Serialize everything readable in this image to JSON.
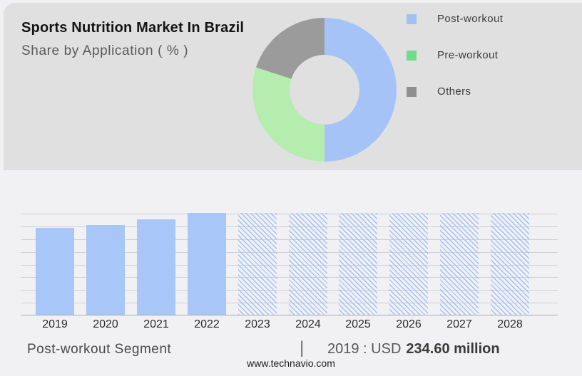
{
  "header": {
    "title": "Sports Nutrition Market In Brazil",
    "subtitle": "Share by Application ( % )"
  },
  "colors": {
    "panel_bg": "#e0e0e1",
    "page_bg": "#f1f1f3",
    "bar_blue": "#a8c6f8",
    "hatch_blue": "#a0c0f5",
    "gridline": "#cfcfd1"
  },
  "legend": {
    "items": [
      {
        "label": "Post-workout",
        "color": "#a2c1f3"
      },
      {
        "label": "Pre-workout",
        "color": "#6edd8a"
      },
      {
        "label": "Others",
        "color": "#8f8f8f"
      }
    ]
  },
  "chart_data": [
    {
      "type": "pie",
      "subtype": "donut",
      "title": "Share by Application ( % )",
      "labels": [
        "Post-workout",
        "Pre-workout",
        "Others"
      ],
      "values_pct": [
        50,
        30,
        20
      ],
      "colors": [
        "#a5c3f7",
        "#b5edae",
        "#9b9b9b"
      ],
      "start_angle_deg": 0,
      "direction": "clockwise",
      "inner_radius_ratio": 0.48,
      "legend_position": "right",
      "data_labels_visible": false
    },
    {
      "type": "bar",
      "categories": [
        "2019",
        "2020",
        "2021",
        "2022",
        "2023",
        "2024",
        "2025",
        "2026",
        "2027",
        "2028"
      ],
      "values_relative": [
        0.85,
        0.88,
        0.94,
        1.0,
        1.0,
        1.0,
        1.0,
        1.0,
        1.0,
        1.0
      ],
      "bar_styles": [
        "solid",
        "solid",
        "solid",
        "solid",
        "hatched",
        "hatched",
        "hatched",
        "hatched",
        "hatched",
        "hatched"
      ],
      "known_values": {
        "2019": "USD 234.60 million"
      },
      "estimated_values_usd_million": [
        234.6,
        242.3,
        257.7,
        275.0,
        null,
        null,
        null,
        null,
        null,
        null
      ],
      "note": "2023-2028 forecast bars drawn full height with diagonal hatch, no value labels",
      "xlabel": "",
      "ylabel": "",
      "grid": true,
      "y_axis_labels_visible": false
    }
  ],
  "footer": {
    "segment_label": "Post-workout Segment",
    "separator": "|",
    "value_prefix": "2019 : USD",
    "value_bold": "234.60 million",
    "website": "www.technavio.com"
  }
}
